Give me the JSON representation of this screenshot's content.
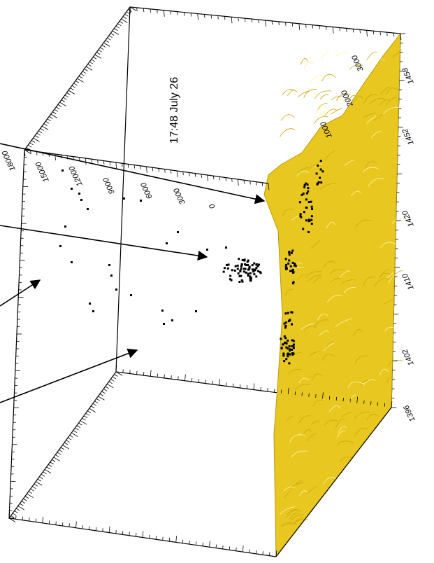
{
  "chart_data": {
    "type": "scatter",
    "projection": "3d",
    "title": "17:48 July 26",
    "xlabel": "",
    "ylabel": "",
    "zlabel": "",
    "grid": false,
    "legend": "none",
    "surface_color": "#e8c820",
    "point_color": "#000000",
    "axes": {
      "depth_axis_ticks": [
        "18000",
        "15000",
        "12000",
        "9000",
        "6000",
        "3000",
        "0"
      ],
      "right_axis_ticks": [
        "1458",
        "1452",
        "1420",
        "1410",
        "1402",
        "1396"
      ],
      "top_right_ticks": [
        "3000",
        "2000",
        "1000"
      ]
    },
    "annotations": [
      {
        "label": "arrow-to-surface-slope"
      },
      {
        "label": "arrow-to-central-cluster"
      },
      {
        "label": "arrow-to-left-point"
      },
      {
        "label": "arrow-to-lower-point"
      }
    ]
  }
}
